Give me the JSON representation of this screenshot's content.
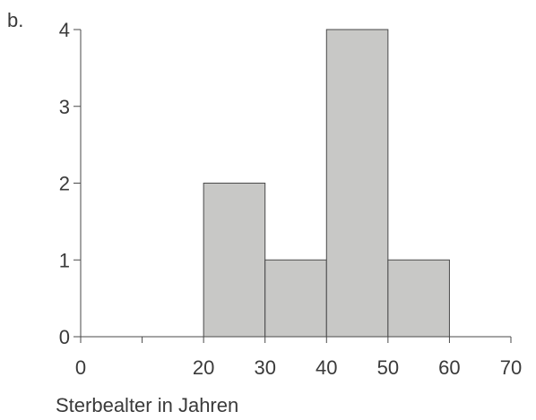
{
  "panel_label": "b.",
  "chart_data": {
    "type": "bar",
    "title": "",
    "xlabel": "Sterbealter in Jahren",
    "ylabel": "",
    "bins": [
      {
        "from": 20,
        "to": 30,
        "value": 2
      },
      {
        "from": 30,
        "to": 40,
        "value": 1
      },
      {
        "from": 40,
        "to": 50,
        "value": 4
      },
      {
        "from": 50,
        "to": 60,
        "value": 1
      }
    ],
    "xticks": [
      0,
      10,
      20,
      30,
      40,
      50,
      60,
      70
    ],
    "xtick_labels": [
      "0",
      "",
      "20",
      "30",
      "40",
      "50",
      "60",
      "70"
    ],
    "yticks": [
      0,
      1,
      2,
      3,
      4
    ],
    "xlim": [
      0,
      70
    ],
    "ylim": [
      0,
      4
    ],
    "grid": false,
    "bar_color": "#c8c8c6",
    "bar_edge_color": "#4a4a4a",
    "axis_color": "#4a4a4a"
  }
}
